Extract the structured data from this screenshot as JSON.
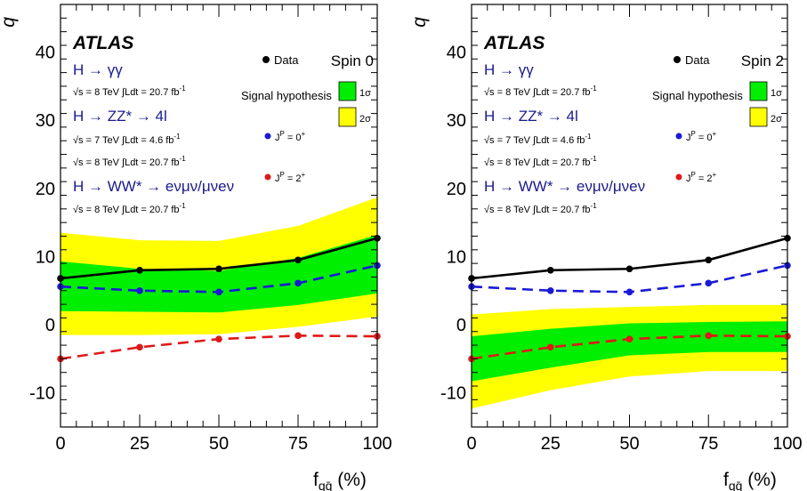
{
  "chart_data": [
    {
      "type": "line",
      "panel": "left",
      "spin_label": "Spin 0",
      "brand": "ATLAS",
      "ylabel": "q",
      "xlabel_main": "f",
      "xlabel_sub": "qq̄",
      "xlabel_unit": "(%)",
      "xlim": [
        0,
        100
      ],
      "ylim": [
        -15,
        47
      ],
      "xticks": [
        0,
        25,
        50,
        75,
        100
      ],
      "xtick_labels": [
        "0",
        "25",
        "50",
        "75",
        "100"
      ],
      "yticks": [
        -10,
        0,
        10,
        20,
        30,
        40
      ],
      "ytick_labels": [
        "-10",
        "0",
        "10",
        "20",
        "30",
        "40"
      ],
      "x": [
        0,
        25,
        50,
        75,
        100
      ],
      "series": [
        {
          "name": "Data",
          "values": [
            6.8,
            8.0,
            8.2,
            9.5,
            12.7
          ],
          "color": "#000000",
          "style": "solid"
        },
        {
          "name": "J^P = 0^+",
          "values": [
            5.6,
            5.0,
            4.8,
            6.1,
            8.7
          ],
          "color": "#1a1ad6",
          "style": "dashed"
        },
        {
          "name": "J^P = 2^+",
          "values": [
            -5.0,
            -3.3,
            -2.1,
            -1.6,
            -1.7
          ],
          "color": "#e01818",
          "style": "dashed"
        }
      ],
      "bands": {
        "centered_on": "J^P = 0^+",
        "one_sigma_lower": [
          2.0,
          1.9,
          1.8,
          2.9,
          4.6
        ],
        "one_sigma_upper": [
          9.3,
          8.2,
          7.9,
          9.8,
          13.2
        ],
        "two_sigma_lower": [
          -1.5,
          -1.5,
          -1.4,
          -0.3,
          1.2
        ],
        "two_sigma_upper": [
          13.5,
          12.4,
          12.3,
          14.5,
          18.7
        ]
      },
      "legend": {
        "data_label": "Data",
        "signal_hypothesis_label": "Signal hypothesis",
        "one_sigma_label": "1σ",
        "two_sigma_label": "2σ",
        "jp0_label": "J",
        "jp0_sup": "P",
        "jp0_rest": " = 0",
        "jp0_sup2": "+",
        "jp2_label": "J",
        "jp2_sup": "P",
        "jp2_rest": " = 2",
        "jp2_sup2": "+"
      },
      "annotations": {
        "channel1": "H → γγ",
        "channel1_lumi": "√s = 8 TeV ∫Ldt = 20.7 fb",
        "channel1_lumi_sup": "-1",
        "channel2": "H → ZZ* → 4l",
        "channel2_lumi_a": "√s = 7 TeV ∫Ldt = 4.6 fb",
        "channel2_lumi_a_sup": "-1",
        "channel2_lumi_b": "√s = 8 TeV ∫Ldt = 20.7 fb",
        "channel2_lumi_b_sup": "-1",
        "channel3": "H → WW* → eνμν/μνeν",
        "channel3_lumi": "√s = 8 TeV ∫Ldt = 20.7 fb",
        "channel3_lumi_sup": "-1"
      },
      "colors": {
        "one_sigma": "#00ee00",
        "two_sigma": "#ffff00",
        "annotation_text": "#1a1a8c"
      }
    },
    {
      "type": "line",
      "panel": "right",
      "spin_label": "Spin 2",
      "brand": "ATLAS",
      "ylabel": "q",
      "xlabel_main": "f",
      "xlabel_sub": "qq̄",
      "xlabel_unit": "(%)",
      "xlim": [
        0,
        100
      ],
      "ylim": [
        -15,
        47
      ],
      "xticks": [
        0,
        25,
        50,
        75,
        100
      ],
      "xtick_labels": [
        "0",
        "25",
        "50",
        "75",
        "100"
      ],
      "yticks": [
        -10,
        0,
        10,
        20,
        30,
        40
      ],
      "ytick_labels": [
        "-10",
        "0",
        "10",
        "20",
        "30",
        "40"
      ],
      "x": [
        0,
        25,
        50,
        75,
        100
      ],
      "series": [
        {
          "name": "Data",
          "values": [
            6.8,
            8.0,
            8.2,
            9.5,
            12.7
          ],
          "color": "#000000",
          "style": "solid"
        },
        {
          "name": "J^P = 0^+",
          "values": [
            5.6,
            5.0,
            4.8,
            6.1,
            8.7
          ],
          "color": "#1a1ad6",
          "style": "dashed"
        },
        {
          "name": "J^P = 2^+",
          "values": [
            -5.0,
            -3.3,
            -2.1,
            -1.6,
            -1.7
          ],
          "color": "#e01818",
          "style": "dashed"
        }
      ],
      "bands": {
        "centered_on": "J^P = 2^+",
        "one_sigma_lower": [
          -8.3,
          -6.3,
          -4.5,
          -4.0,
          -4.0
        ],
        "one_sigma_upper": [
          -1.7,
          -0.6,
          0.2,
          0.4,
          0.5
        ],
        "two_sigma_lower": [
          -12.3,
          -9.6,
          -7.6,
          -6.8,
          -6.8
        ],
        "two_sigma_upper": [
          1.5,
          2.3,
          2.6,
          2.9,
          2.9
        ]
      },
      "legend": {
        "data_label": "Data",
        "signal_hypothesis_label": "Signal hypothesis",
        "one_sigma_label": "1σ",
        "two_sigma_label": "2σ",
        "jp0_label": "J",
        "jp0_sup": "P",
        "jp0_rest": " = 0",
        "jp0_sup2": "+",
        "jp2_label": "J",
        "jp2_sup": "P",
        "jp2_rest": " = 2",
        "jp2_sup2": "+"
      },
      "annotations": {
        "channel1": "H → γγ",
        "channel1_lumi": "√s = 8 TeV ∫Ldt = 20.7 fb",
        "channel1_lumi_sup": "-1",
        "channel2": "H → ZZ* → 4l",
        "channel2_lumi_a": "√s = 7 TeV ∫Ldt = 4.6 fb",
        "channel2_lumi_a_sup": "-1",
        "channel2_lumi_b": "√s = 8 TeV ∫Ldt = 20.7 fb",
        "channel2_lumi_b_sup": "-1",
        "channel3": "H → WW* → eνμν/μνeν",
        "channel3_lumi": "√s = 8 TeV ∫Ldt = 20.7 fb",
        "channel3_lumi_sup": "-1"
      },
      "colors": {
        "one_sigma": "#00ee00",
        "two_sigma": "#ffff00",
        "annotation_text": "#1a1a8c"
      }
    }
  ]
}
